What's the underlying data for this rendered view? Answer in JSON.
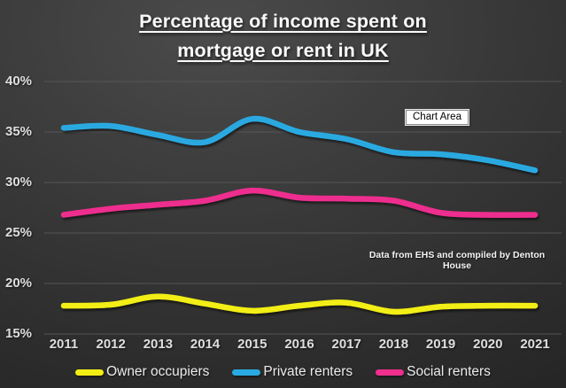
{
  "title": {
    "line1": "Percentage of income spent on",
    "line2": "mortgage or rent in UK"
  },
  "tooltip": {
    "label": "Chart Area"
  },
  "annotation": {
    "text": "Data from EHS and compiled by Denton House"
  },
  "colors": {
    "gridline": "#5b5b5b",
    "axis_text": "#dedede",
    "title_text": "#fafafa"
  },
  "chart_data": {
    "type": "line",
    "title": "Percentage of income spent on mortgage or rent in UK",
    "categories": [
      "2011",
      "2012",
      "2013",
      "2014",
      "2015",
      "2016",
      "2017",
      "2018",
      "2019",
      "2020",
      "2021"
    ],
    "series": [
      {
        "name": "Owner occupiers",
        "color": "#f2ee14",
        "values": [
          17.8,
          17.9,
          18.7,
          18.0,
          17.3,
          17.8,
          18.1,
          17.2,
          17.7,
          17.8,
          17.8
        ]
      },
      {
        "name": "Private renters",
        "color": "#29a9e1",
        "values": [
          35.4,
          35.6,
          34.7,
          34.0,
          36.3,
          35.0,
          34.3,
          33.0,
          32.8,
          32.2,
          31.2
        ]
      },
      {
        "name": "Social renters",
        "color": "#ee2f8e",
        "values": [
          26.8,
          27.4,
          27.8,
          28.2,
          29.2,
          28.5,
          28.4,
          28.2,
          27.0,
          26.8,
          26.8
        ]
      }
    ],
    "xlabel": "",
    "ylabel": "",
    "ylim": [
      15,
      40
    ],
    "yticks": [
      15,
      20,
      25,
      30,
      35,
      40
    ],
    "ytick_format": "{v}%",
    "grid": true,
    "legend_position": "bottom",
    "annotations": [
      "Chart Area",
      "Data from EHS and compiled by Denton House"
    ]
  }
}
